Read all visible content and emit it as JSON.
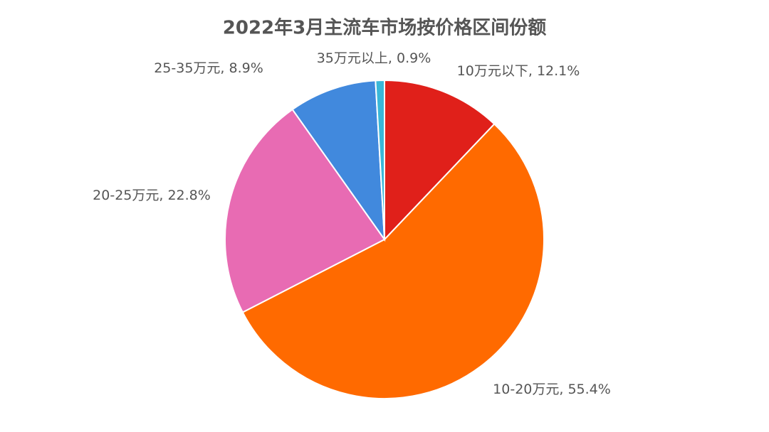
{
  "chart_data": {
    "type": "pie",
    "title": "2022年3月主流车市场按价格区间份额",
    "categories": [
      "10万元以下",
      "10-20万元",
      "20-25万元",
      "25-35万元",
      "35万元以上"
    ],
    "values": [
      12.1,
      55.4,
      22.8,
      8.9,
      0.9
    ],
    "value_labels": [
      "12.1%",
      "55.4%",
      "22.8%",
      "8.9%",
      "0.9%"
    ],
    "label_separator": ", ",
    "colors": [
      "#e0201a",
      "#ff6a00",
      "#e86bb3",
      "#4189dd",
      "#3ab7d8"
    ]
  }
}
